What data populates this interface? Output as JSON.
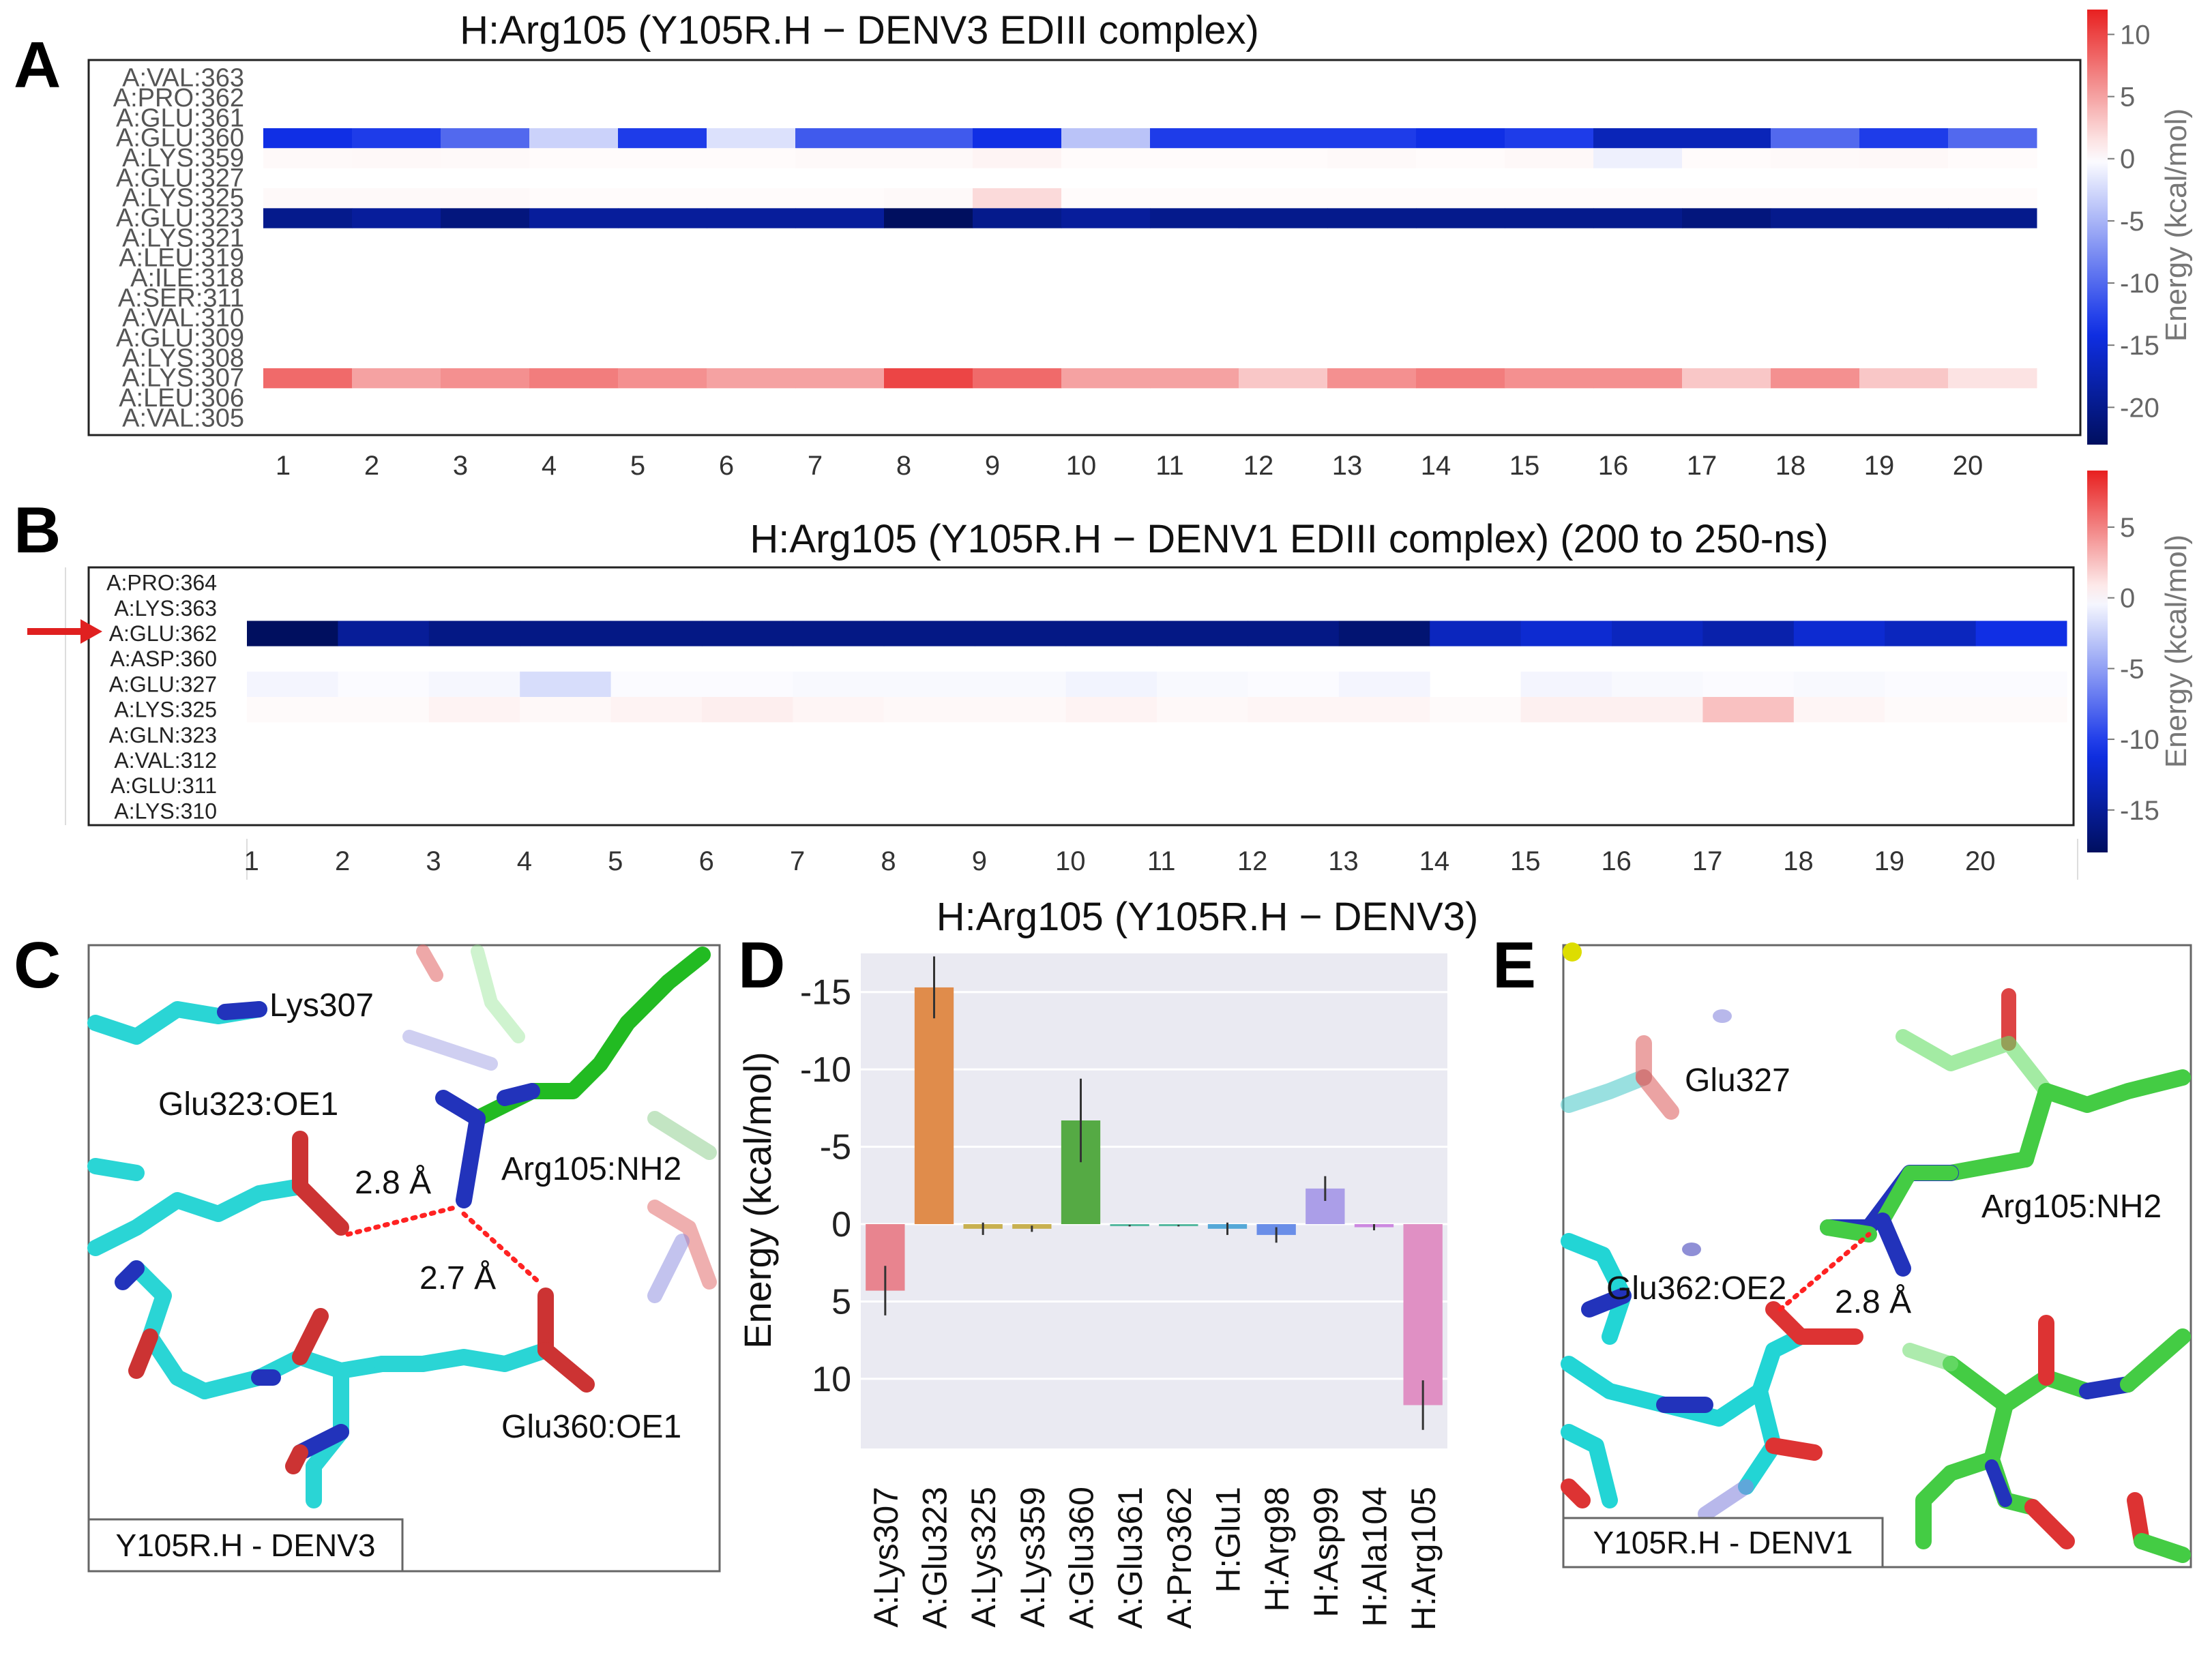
{
  "panel_letters": [
    "A",
    "B",
    "C",
    "D",
    "E"
  ],
  "colorbar_label": "Energy (kcal/mol)",
  "colors": {
    "positive": "#e82020",
    "neutral": "#ffffff",
    "negative": "#000f5f",
    "mid_blue": "#1030e8"
  },
  "chart_data": [
    {
      "id": "A",
      "type": "heatmap",
      "title": "H:Arg105 (Y105R.H − DENV3 EDIII complex)",
      "x": [
        "1",
        "2",
        "3",
        "4",
        "5",
        "6",
        "7",
        "8",
        "9",
        "10",
        "11",
        "12",
        "13",
        "14",
        "15",
        "16",
        "17",
        "18",
        "19",
        "20"
      ],
      "rows": [
        "A:VAL:363",
        "A:PRO:362",
        "A:GLU:361",
        "A:GLU:360",
        "A:LYS:359",
        "A:GLU:327",
        "A:LYS:325",
        "A:GLU:323",
        "A:LYS:321",
        "A:LEU:319",
        "A:ILE:318",
        "A:SER:311",
        "A:VAL:310",
        "A:GLU:309",
        "A:LYS:308",
        "A:LYS:307",
        "A:LEU:306",
        "A:VAL:305"
      ],
      "values": [
        [
          0,
          0,
          0,
          0,
          0,
          0,
          0,
          0,
          0,
          0,
          0,
          0,
          0,
          0,
          0,
          0,
          0,
          0,
          0,
          0
        ],
        [
          0,
          0,
          0,
          0,
          0,
          0,
          0,
          0,
          0,
          0,
          0,
          0,
          0,
          0,
          0,
          0,
          0,
          0,
          0,
          0
        ],
        [
          0,
          0,
          0,
          0,
          0,
          0,
          0,
          0,
          0,
          0,
          0,
          0,
          0,
          0,
          0,
          0,
          0,
          0,
          0,
          0
        ],
        [
          -14,
          -13,
          -10,
          -3,
          -13,
          -2,
          -11,
          -11,
          -14,
          -4,
          -13,
          -13,
          -13,
          -14,
          -13,
          -17,
          -17,
          -10,
          -13,
          -10
        ],
        [
          0.3,
          0.4,
          0.3,
          0.2,
          0.2,
          0.2,
          0.3,
          0.3,
          0.6,
          0.2,
          0.2,
          0.2,
          0.3,
          0.2,
          0.4,
          -1,
          0.2,
          0.3,
          0.4,
          0.2
        ],
        [
          0,
          0,
          0,
          0,
          0,
          0,
          0,
          0,
          0,
          0,
          0,
          0,
          0,
          0,
          0,
          0,
          0,
          0,
          0,
          0
        ],
        [
          0.3,
          0.3,
          0.3,
          0.2,
          0.2,
          0.2,
          0.2,
          0.3,
          2,
          0.2,
          0.2,
          0.2,
          0.2,
          0.2,
          0.2,
          0.2,
          0.2,
          0.2,
          0.2,
          0.2
        ],
        [
          -20,
          -19,
          -21,
          -19,
          -19,
          -19,
          -19,
          -23,
          -20,
          -19,
          -20,
          -20,
          -20,
          -20,
          -20,
          -20,
          -21,
          -20,
          -20,
          -20
        ],
        [
          0,
          0,
          0,
          0,
          0,
          0,
          0,
          0,
          0,
          0,
          0,
          0,
          0,
          0,
          0,
          0,
          0,
          0,
          0,
          0
        ],
        [
          0,
          0,
          0,
          0,
          0,
          0,
          0,
          0,
          0,
          0,
          0,
          0,
          0,
          0,
          0,
          0,
          0,
          0,
          0,
          0
        ],
        [
          0,
          0,
          0,
          0,
          0,
          0,
          0,
          0,
          0,
          0,
          0,
          0,
          0,
          0,
          0,
          0,
          0,
          0,
          0,
          0
        ],
        [
          0,
          0,
          0,
          0,
          0,
          0,
          0,
          0,
          0,
          0,
          0,
          0,
          0,
          0,
          0,
          0,
          0,
          0,
          0,
          0
        ],
        [
          0,
          0,
          0,
          0,
          0,
          0,
          0,
          0,
          0,
          0,
          0,
          0,
          0,
          0,
          0,
          0,
          0,
          0,
          0,
          0
        ],
        [
          0,
          0,
          0,
          0,
          0,
          0,
          0,
          0,
          0,
          0,
          0,
          0,
          0,
          0,
          0,
          0,
          0,
          0,
          0,
          0
        ],
        [
          0,
          0,
          0,
          0,
          0,
          0,
          0,
          0,
          0,
          0,
          0,
          0,
          0,
          0,
          0,
          0,
          0,
          0,
          0,
          0
        ],
        [
          8,
          5,
          6,
          7,
          6,
          5,
          5,
          10,
          8,
          5,
          5,
          3,
          6,
          7,
          6,
          6,
          3,
          6,
          3,
          1.5
        ],
        [
          0,
          0,
          0,
          0,
          0,
          0,
          0,
          0,
          0,
          0,
          0,
          0,
          0,
          0,
          0,
          0,
          0,
          0,
          0,
          0
        ],
        [
          0,
          0,
          0,
          0,
          0,
          0,
          0,
          0,
          0,
          0,
          0,
          0,
          0,
          0,
          0,
          0,
          0,
          0,
          0,
          0
        ]
      ],
      "colorbar": {
        "vmin": -23,
        "vmax": 12,
        "ticks": [
          10,
          5,
          0,
          -5,
          -10,
          -15,
          -20
        ]
      }
    },
    {
      "id": "B",
      "type": "heatmap",
      "title": "H:Arg105 (Y105R.H − DENV1 EDIII complex) (200 to 250-ns)",
      "x": [
        "1",
        "2",
        "3",
        "4",
        "5",
        "6",
        "7",
        "8",
        "9",
        "10",
        "11",
        "12",
        "13",
        "14",
        "15",
        "16",
        "17",
        "18",
        "19",
        "20"
      ],
      "rows": [
        "A:PRO:364",
        "A:LYS:363",
        "A:GLU:362",
        "A:ASP:360",
        "A:GLU:327",
        "A:LYS:325",
        "A:GLN:323",
        "A:VAL:312",
        "A:GLU:311",
        "A:LYS:310"
      ],
      "values": [
        [
          0,
          0,
          0,
          0,
          0,
          0,
          0,
          0,
          0,
          0,
          0,
          0,
          0,
          0,
          0,
          0,
          0,
          0,
          0,
          0
        ],
        [
          0,
          0,
          0,
          0,
          0,
          0,
          0,
          0,
          0,
          0,
          0,
          0,
          0,
          0,
          0,
          0,
          0,
          0,
          0,
          0
        ],
        [
          -18,
          -15,
          -16,
          -16,
          -16,
          -16,
          -16,
          -16,
          -16,
          -16,
          -16,
          -16,
          -17,
          -13,
          -12,
          -13,
          -14,
          -12,
          -13,
          -11
        ],
        [
          0,
          0,
          0,
          0,
          0,
          0,
          0,
          0,
          0,
          0,
          0,
          0,
          0,
          0,
          0,
          0,
          0,
          0,
          0,
          0
        ],
        [
          -0.5,
          -0.2,
          -0.4,
          -1.8,
          -0.2,
          -0.2,
          -0.3,
          -0.3,
          -0.3,
          -0.6,
          -0.3,
          -0.2,
          -0.5,
          0,
          -0.5,
          -0.3,
          -0.2,
          -0.3,
          -0.2,
          -0.2
        ],
        [
          0.2,
          0.2,
          0.5,
          0.3,
          0.5,
          0.7,
          0.4,
          0.3,
          0.3,
          0.5,
          0.3,
          0.4,
          0.4,
          0.2,
          0.6,
          0.6,
          2.5,
          0.4,
          0.2,
          0.2
        ],
        [
          0,
          0,
          0,
          0,
          0,
          0,
          0,
          0,
          0,
          0,
          0,
          0,
          0,
          0,
          0,
          0,
          0,
          0,
          0,
          0
        ],
        [
          0,
          0,
          0,
          0,
          0,
          0,
          0,
          0,
          0,
          0,
          0,
          0,
          0,
          0,
          0,
          0,
          0,
          0,
          0,
          0
        ],
        [
          0,
          0,
          0,
          0,
          0,
          0,
          0,
          0,
          0,
          0,
          0,
          0,
          0,
          0,
          0,
          0,
          0,
          0,
          0,
          0
        ],
        [
          0,
          0,
          0,
          0,
          0,
          0,
          0,
          0,
          0,
          0,
          0,
          0,
          0,
          0,
          0,
          0,
          0,
          0,
          0,
          0
        ]
      ],
      "highlighted_row": "A:GLU:362",
      "colorbar": {
        "vmin": -18,
        "vmax": 9,
        "ticks": [
          5,
          0,
          -5,
          -10,
          -15
        ]
      }
    },
    {
      "id": "D",
      "type": "bar",
      "title": "H:Arg105 (Y105R.H − DENV3)",
      "ylabel": "Energy (kcal/mol)",
      "ylim": [
        -17.5,
        14.5
      ],
      "yticks": [
        -15,
        -10,
        -5,
        0,
        5,
        10
      ],
      "ytick_labels": [
        "-15",
        "-10",
        "-5",
        "0",
        "5",
        "10"
      ],
      "categories": [
        "A:Lys307",
        "A:Glu323",
        "A:Lys325",
        "A:Lys359",
        "A:Glu360",
        "A:Glu361",
        "A:Pro362",
        "H:Glu1",
        "H:Arg98",
        "H:Asp99",
        "H:Ala104",
        "H:Arg105"
      ],
      "values": [
        4.3,
        -15.3,
        0.3,
        0.3,
        -6.7,
        0.1,
        0.1,
        0.3,
        0.7,
        -2.3,
        0.2,
        11.7
      ],
      "errors": [
        1.6,
        2.0,
        0.4,
        0.2,
        2.7,
        0.05,
        0.05,
        0.4,
        0.5,
        0.8,
        0.2,
        1.6
      ],
      "bar_colors": [
        "#e8848f",
        "#e08c4b",
        "#c8b050",
        "#c8b050",
        "#55aa44",
        "#55b8a0",
        "#55b8a0",
        "#55a8d8",
        "#6a8ee8",
        "#ab9ee8",
        "#cc88e0",
        "#e090c4"
      ]
    }
  ],
  "structure_panels": {
    "C": {
      "caption": "Y105R.H - DENV3",
      "labels": {
        "lys307": "Lys307",
        "glu323": "Glu323:OE1",
        "arg105": "Arg105:NH2",
        "glu360": "Glu360:OE1",
        "dist1": "2.8 Å",
        "dist2": "2.7 Å"
      }
    },
    "E": {
      "caption": "Y105R.H - DENV1",
      "labels": {
        "glu327": "Glu327",
        "arg105": "Arg105:NH2",
        "glu362": "Glu362:OE2",
        "dist": "2.8 Å"
      }
    }
  }
}
